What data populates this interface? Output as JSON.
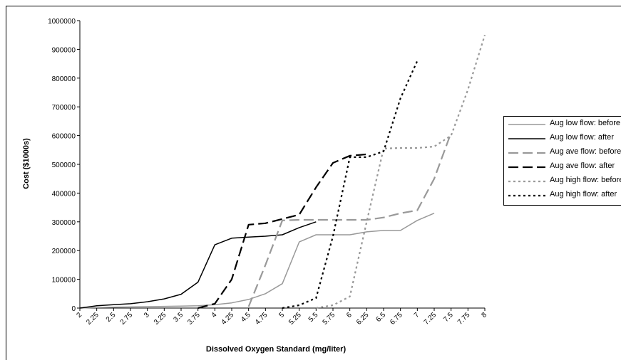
{
  "chart_data": {
    "type": "line",
    "title": "",
    "xlabel": "Dissolved Oxygen Standard (mg/liter)",
    "ylabel": "Cost ($1000s)",
    "categories": [
      "2",
      "2.25",
      "2.5",
      "2.75",
      "3",
      "3.25",
      "3.5",
      "3.75",
      "4",
      "4.25",
      "4.5",
      "4.75",
      "5",
      "5.25",
      "5.5",
      "5.75",
      "6",
      "6.25",
      "6.5",
      "6.75",
      "7",
      "7.25",
      "7.5",
      "7.75",
      "8"
    ],
    "x_tick_labels": [
      "2",
      "2.25",
      "2.5",
      "2.75",
      "3",
      "3.25",
      "3.5",
      "3.75",
      "4",
      "4.25",
      "4.5",
      "4.75",
      "5",
      "5.25",
      "5.5",
      "5.75",
      "6",
      "6.25",
      "6.5",
      "6.75",
      "7",
      "7.25",
      "7.5",
      "7.75",
      "8"
    ],
    "ylim": [
      0,
      1000000
    ],
    "y_tick_labels": [
      "0",
      "100000",
      "200000",
      "300000",
      "400000",
      "500000",
      "600000",
      "700000",
      "800000",
      "900000",
      "1000000"
    ],
    "grid": false,
    "legend_position": "right",
    "series": [
      {
        "name": "Aug low flow: before",
        "color": "#999999",
        "dash": "solid",
        "x": [
          2,
          2.25,
          2.5,
          2.75,
          3,
          3.25,
          3.5,
          3.75,
          4,
          4.25,
          4.5,
          4.75,
          5,
          5.25,
          5.5,
          5.75,
          6,
          6.25,
          6.5,
          6.75,
          7,
          7.25
        ],
        "values": [
          0,
          2000,
          3000,
          4000,
          5000,
          6000,
          7000,
          8000,
          12000,
          18000,
          30000,
          50000,
          85000,
          230000,
          255000,
          255000,
          255000,
          265000,
          270000,
          270000,
          305000,
          330000
        ]
      },
      {
        "name": "Aug low flow: after",
        "color": "#000000",
        "dash": "solid",
        "x": [
          2,
          2.25,
          2.5,
          2.75,
          3,
          3.25,
          3.5,
          3.75,
          4,
          4.25,
          4.5,
          4.75,
          5,
          5.25,
          5.5
        ],
        "values": [
          0,
          8000,
          12000,
          15000,
          22000,
          32000,
          48000,
          90000,
          220000,
          243000,
          247000,
          250000,
          255000,
          280000,
          300000
        ]
      },
      {
        "name": "Aug ave flow: before",
        "color": "#999999",
        "dash": "long-dash",
        "x": [
          4.5,
          4.75,
          5,
          5.25,
          5.5,
          5.75,
          6,
          6.25,
          6.5,
          6.75,
          7,
          7.25,
          7.5
        ],
        "values": [
          5000,
          150000,
          305000,
          307000,
          307000,
          307000,
          307000,
          307000,
          315000,
          330000,
          340000,
          450000,
          610000
        ]
      },
      {
        "name": "Aug ave flow: after",
        "color": "#000000",
        "dash": "long-dash",
        "x": [
          3.75,
          4,
          4.25,
          4.5,
          4.75,
          5,
          5.25,
          5.5,
          5.75,
          6,
          6.25
        ],
        "values": [
          0,
          15000,
          100000,
          290000,
          295000,
          310000,
          325000,
          420000,
          505000,
          530000,
          535000
        ]
      },
      {
        "name": "Aug high flow: before",
        "color": "#999999",
        "dash": "dot",
        "x": [
          5.5,
          5.75,
          6,
          6.25,
          6.5,
          6.75,
          7,
          7.25,
          7.5,
          7.75,
          8
        ],
        "values": [
          0,
          10000,
          40000,
          300000,
          555000,
          557000,
          557000,
          562000,
          600000,
          760000,
          950000
        ]
      },
      {
        "name": "Aug high flow: after",
        "color": "#000000",
        "dash": "dot",
        "x": [
          5,
          5.25,
          5.5,
          5.75,
          6,
          6.25,
          6.5,
          6.75,
          7
        ],
        "values": [
          0,
          10000,
          35000,
          250000,
          525000,
          525000,
          545000,
          730000,
          860000
        ]
      }
    ]
  }
}
